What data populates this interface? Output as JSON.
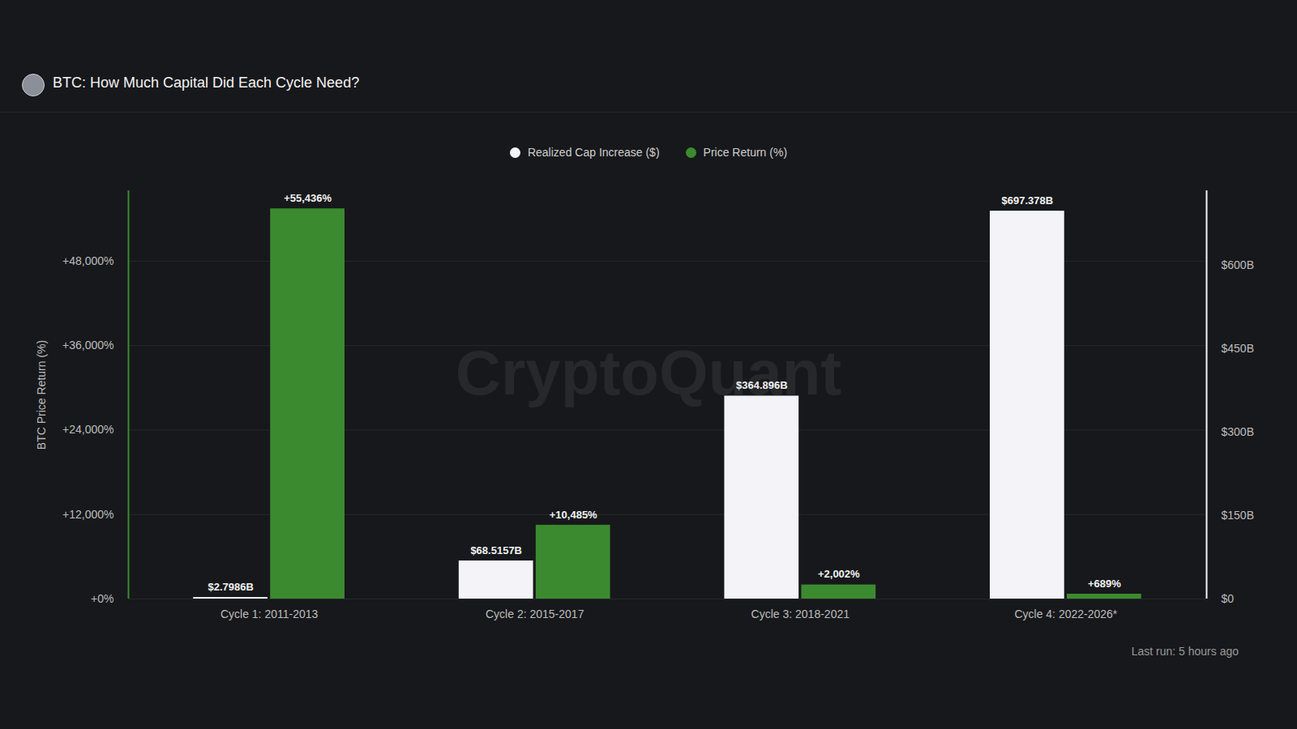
{
  "chart_data": {
    "type": "bar",
    "title": "BTC: How Much Capital Did Each Cycle Need?",
    "watermark": "CryptoQuant",
    "footer": "Last run: 5 hours ago",
    "y_label": "BTC Price Return (%)",
    "categories": [
      "Cycle 1: 2011-2013",
      "Cycle 2: 2015-2017",
      "Cycle 3: 2018-2021",
      "Cycle 4: 2022-2026*"
    ],
    "series": [
      {
        "name": "Realized Cap Increase ($)",
        "color": "#f4f4f8",
        "axis": "y2",
        "values": [
          2.7986,
          68.5157,
          364.896,
          697.378
        ],
        "value_labels": [
          "$2.7986B",
          "$68.5157B",
          "$364.896B",
          "$697.378B"
        ]
      },
      {
        "name": "Price Return (%)",
        "color": "#3c8a30",
        "values": [
          55436,
          10485,
          2002,
          689
        ],
        "value_labels": [
          "+55,436%",
          "+10,485%",
          "+2,002%",
          "+689%"
        ]
      }
    ],
    "ylim": [
      0,
      58000
    ],
    "yticks": [
      {
        "value": 0,
        "label": "+0%"
      },
      {
        "value": 12000,
        "label": "+12,000%"
      },
      {
        "value": 24000,
        "label": "+24,000%"
      },
      {
        "value": 36000,
        "label": "+36,000%"
      },
      {
        "value": 48000,
        "label": "+48,000%"
      }
    ],
    "y2lim": [
      0,
      734
    ],
    "y2ticks": [
      {
        "value": 0,
        "label": "$0"
      },
      {
        "value": 150,
        "label": "$150B"
      },
      {
        "value": 300,
        "label": "$300B"
      },
      {
        "value": 450,
        "label": "$450B"
      },
      {
        "value": 600,
        "label": "$600B"
      }
    ],
    "grid": true,
    "legend": "top",
    "data_labels": true
  }
}
